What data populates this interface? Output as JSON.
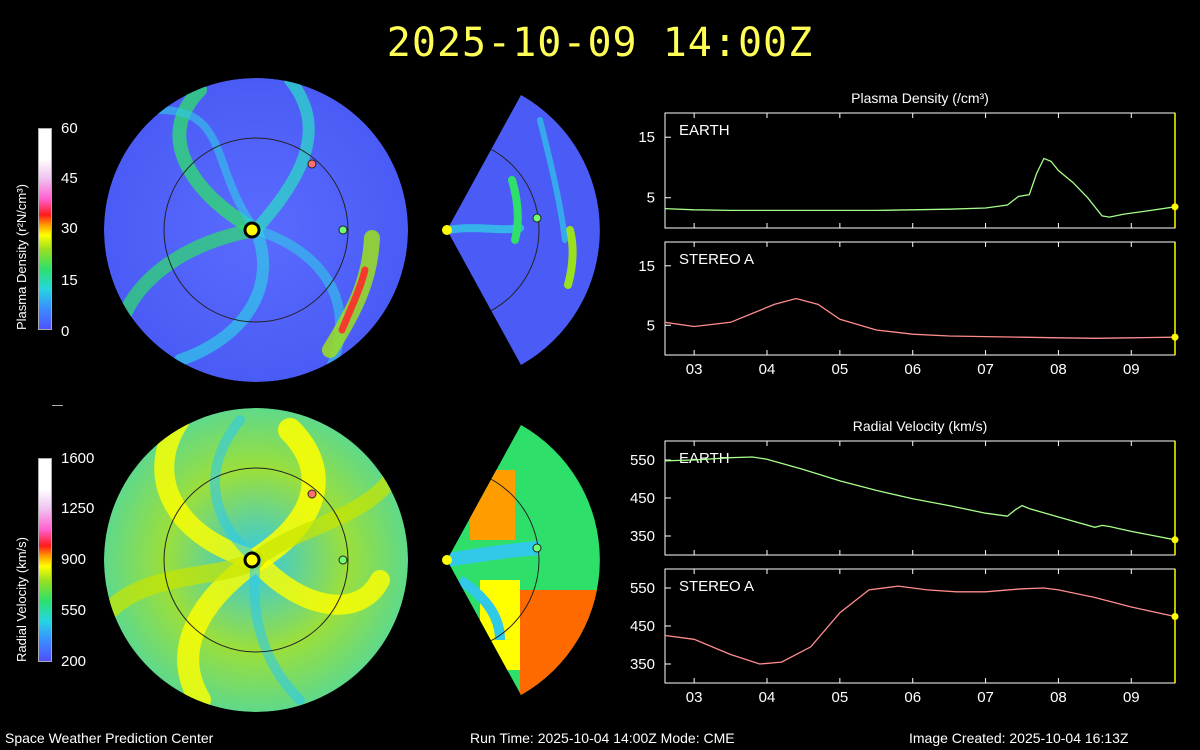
{
  "title": "2025-10-09 14:00Z",
  "density_colorbar": {
    "label": "Plasma Density (r²N/cm³)",
    "ticks": [
      "60",
      "45",
      "30",
      "15",
      "0"
    ]
  },
  "velocity_colorbar": {
    "label": "Radial Velocity (km/s)",
    "ticks": [
      "1600",
      "1250",
      "900",
      "550",
      "200"
    ]
  },
  "footer": {
    "left": "Space Weather Prediction Center",
    "center": "Run Time: 2025-10-04 14:00Z  Mode: CME",
    "right": "Image Created: 2025-10-04 16:13Z"
  },
  "colors": {
    "earth_line": "#a6ff8c",
    "stereo_line": "#ff8c8c",
    "marker": "#ffff00",
    "frame": "#ffff00"
  },
  "chart_data": [
    {
      "type": "line",
      "title": "Plasma Density (/cm³)",
      "panel": "EARTH",
      "x_ticks": [
        "03",
        "04",
        "05",
        "06",
        "07",
        "08",
        "09"
      ],
      "xlim": [
        2.6,
        9.6
      ],
      "ylim": [
        0,
        19
      ],
      "y_ticks": [
        5,
        15
      ],
      "x": [
        2.6,
        3.0,
        3.5,
        4.0,
        4.5,
        5.0,
        5.5,
        6.0,
        6.5,
        7.0,
        7.3,
        7.45,
        7.6,
        7.7,
        7.8,
        7.9,
        8.0,
        8.2,
        8.4,
        8.6,
        8.7,
        8.9,
        9.2,
        9.6
      ],
      "values": [
        3.2,
        3.0,
        2.9,
        2.9,
        2.9,
        2.9,
        2.9,
        3.0,
        3.1,
        3.3,
        3.8,
        5.2,
        5.5,
        9.0,
        11.5,
        11.0,
        9.5,
        7.5,
        5.0,
        2.0,
        1.8,
        2.3,
        2.8,
        3.5
      ]
    },
    {
      "type": "line",
      "panel": "STEREO A",
      "x_ticks": [
        "03",
        "04",
        "05",
        "06",
        "07",
        "08",
        "09"
      ],
      "xlim": [
        2.6,
        9.6
      ],
      "ylim": [
        0,
        19
      ],
      "y_ticks": [
        5,
        15
      ],
      "x": [
        2.6,
        3.0,
        3.5,
        3.8,
        4.1,
        4.4,
        4.7,
        5.0,
        5.5,
        6.0,
        6.5,
        7.0,
        7.5,
        8.0,
        8.5,
        9.0,
        9.6
      ],
      "values": [
        5.5,
        4.8,
        5.5,
        7.0,
        8.5,
        9.5,
        8.5,
        6.0,
        4.2,
        3.5,
        3.2,
        3.1,
        3.0,
        2.9,
        2.8,
        2.9,
        3.0
      ]
    },
    {
      "type": "line",
      "title": "Radial Velocity (km/s)",
      "panel": "EARTH",
      "x_ticks": [
        "03",
        "04",
        "05",
        "06",
        "07",
        "08",
        "09"
      ],
      "xlim": [
        2.6,
        9.6
      ],
      "ylim": [
        300,
        600
      ],
      "y_ticks": [
        350,
        450,
        550
      ],
      "x": [
        2.6,
        3.0,
        3.5,
        3.8,
        4.0,
        4.5,
        5.0,
        5.5,
        6.0,
        6.5,
        7.0,
        7.3,
        7.4,
        7.5,
        7.6,
        8.0,
        8.5,
        8.6,
        8.7,
        9.0,
        9.6
      ],
      "values": [
        548,
        550,
        556,
        558,
        552,
        525,
        495,
        470,
        448,
        430,
        410,
        402,
        418,
        430,
        422,
        400,
        373,
        378,
        375,
        362,
        340
      ]
    },
    {
      "type": "line",
      "panel": "STEREO A",
      "x_ticks": [
        "03",
        "04",
        "05",
        "06",
        "07",
        "08",
        "09"
      ],
      "xlim": [
        2.6,
        9.6
      ],
      "ylim": [
        300,
        600
      ],
      "y_ticks": [
        350,
        450,
        550
      ],
      "x": [
        2.6,
        3.0,
        3.5,
        3.9,
        4.2,
        4.6,
        5.0,
        5.4,
        5.8,
        6.2,
        6.6,
        7.0,
        7.5,
        7.8,
        8.0,
        8.5,
        9.0,
        9.6
      ],
      "values": [
        425,
        415,
        375,
        350,
        355,
        395,
        485,
        545,
        555,
        545,
        540,
        540,
        548,
        550,
        545,
        525,
        500,
        475
      ]
    }
  ]
}
